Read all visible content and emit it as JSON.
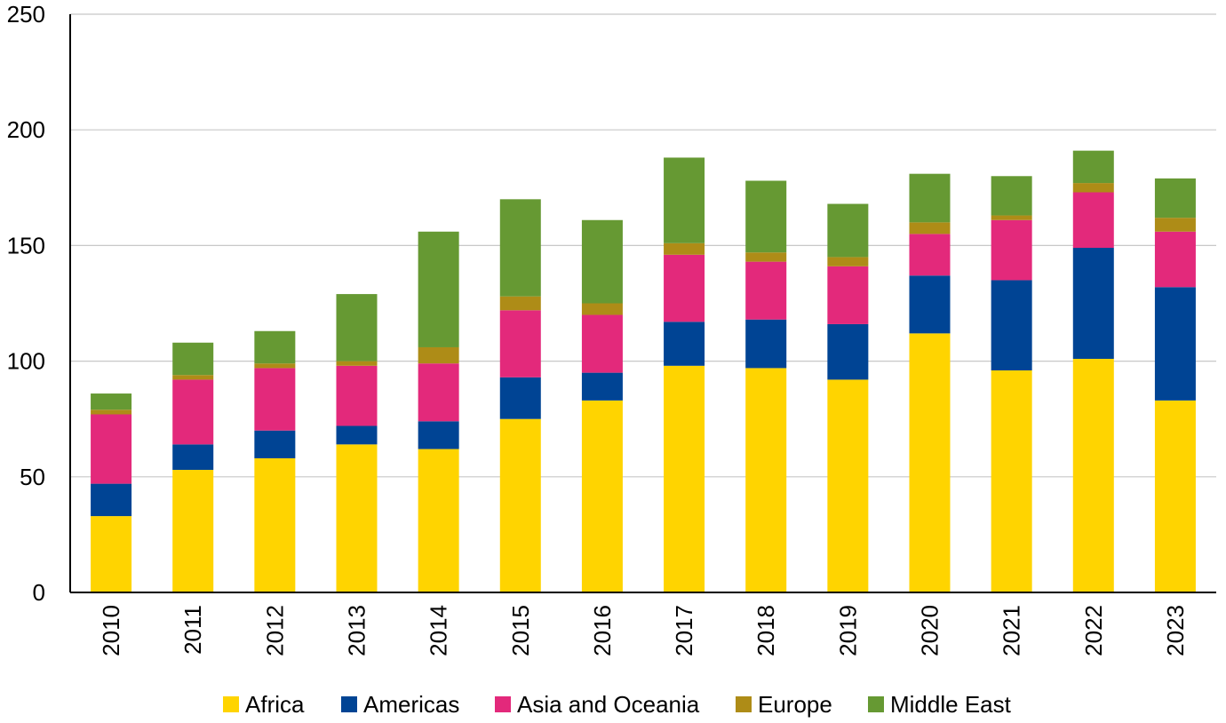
{
  "chart_data": {
    "type": "bar",
    "stacked": true,
    "categories": [
      "2010",
      "2011",
      "2012",
      "2013",
      "2014",
      "2015",
      "2016",
      "2017",
      "2018",
      "2019",
      "2020",
      "2021",
      "2022",
      "2023"
    ],
    "series": [
      {
        "name": "Africa",
        "color": "#FFD400",
        "values": [
          33,
          53,
          58,
          64,
          62,
          75,
          83,
          98,
          97,
          92,
          112,
          96,
          101,
          83
        ]
      },
      {
        "name": "Americas",
        "color": "#004494",
        "values": [
          14,
          11,
          12,
          8,
          12,
          18,
          12,
          19,
          21,
          24,
          25,
          39,
          48,
          49
        ]
      },
      {
        "name": "Asia and Oceania",
        "color": "#E3297B",
        "values": [
          30,
          28,
          27,
          26,
          25,
          29,
          25,
          29,
          25,
          25,
          18,
          26,
          24,
          24
        ]
      },
      {
        "name": "Europe",
        "color": "#AE8C17",
        "values": [
          2,
          2,
          2,
          2,
          7,
          6,
          5,
          5,
          4,
          4,
          5,
          2,
          4,
          6
        ]
      },
      {
        "name": "Middle East",
        "color": "#669933",
        "values": [
          7,
          14,
          14,
          29,
          50,
          42,
          36,
          37,
          31,
          23,
          21,
          17,
          14,
          17
        ]
      }
    ],
    "ylim": [
      0,
      250
    ],
    "yticks": [
      "0",
      "50",
      "100",
      "150",
      "200",
      "250"
    ],
    "ytick_values": [
      0,
      50,
      100,
      150,
      200,
      250
    ],
    "grid": true,
    "legend_position": "bottom",
    "title": "",
    "xlabel": "",
    "ylabel": ""
  }
}
